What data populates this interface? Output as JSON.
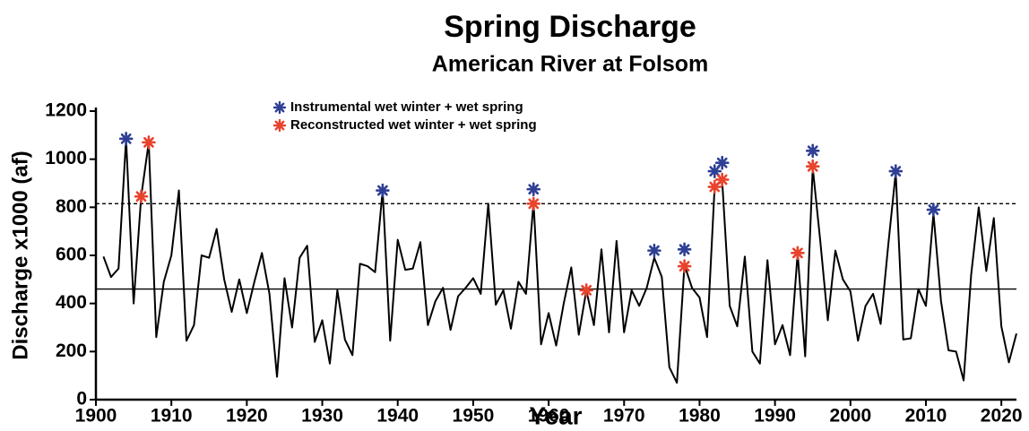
{
  "chart_data": {
    "type": "line",
    "title": "Spring Discharge",
    "subtitle": "American River at Folsom",
    "x_label": "Year",
    "y_label": "Discharge x1000 (af)",
    "xlim": [
      1900,
      2022
    ],
    "ylim": [
      0,
      1200
    ],
    "xticks": [
      1900,
      1910,
      1920,
      1930,
      1940,
      1950,
      1960,
      1970,
      1980,
      1990,
      2000,
      2010,
      2020
    ],
    "yticks": [
      0,
      200,
      400,
      600,
      800,
      1000,
      1200
    ],
    "reference_lines": [
      {
        "value": 460,
        "style": "solid"
      },
      {
        "value": 815,
        "style": "dashed"
      }
    ],
    "series": [
      {
        "color": "#000000",
        "x": [
          1901,
          1902,
          1903,
          1904,
          1905,
          1906,
          1907,
          1908,
          1909,
          1910,
          1911,
          1912,
          1913,
          1914,
          1915,
          1916,
          1917,
          1918,
          1919,
          1920,
          1921,
          1922,
          1923,
          1924,
          1925,
          1926,
          1927,
          1928,
          1929,
          1930,
          1931,
          1932,
          1933,
          1934,
          1935,
          1936,
          1937,
          1938,
          1939,
          1940,
          1941,
          1942,
          1943,
          1944,
          1945,
          1946,
          1947,
          1948,
          1949,
          1950,
          1951,
          1952,
          1953,
          1954,
          1955,
          1956,
          1957,
          1958,
          1959,
          1960,
          1961,
          1962,
          1963,
          1964,
          1965,
          1966,
          1967,
          1968,
          1969,
          1970,
          1971,
          1972,
          1973,
          1974,
          1975,
          1976,
          1977,
          1978,
          1979,
          1980,
          1981,
          1982,
          1983,
          1984,
          1985,
          1986,
          1987,
          1988,
          1989,
          1990,
          1991,
          1992,
          1993,
          1994,
          1995,
          1996,
          1997,
          1998,
          1999,
          2000,
          2001,
          2002,
          2003,
          2004,
          2005,
          2006,
          2007,
          2008,
          2009,
          2010,
          2011,
          2012,
          2013,
          2014,
          2015,
          2016,
          2017,
          2018,
          2019,
          2020,
          2021,
          2022
        ],
        "values": [
          595,
          510,
          545,
          1085,
          400,
          845,
          1070,
          260,
          490,
          600,
          870,
          245,
          310,
          600,
          590,
          710,
          500,
          365,
          500,
          360,
          490,
          610,
          440,
          95,
          505,
          300,
          590,
          640,
          240,
          330,
          150,
          455,
          250,
          185,
          565,
          555,
          530,
          870,
          245,
          665,
          540,
          545,
          655,
          310,
          410,
          465,
          290,
          430,
          465,
          505,
          440,
          815,
          395,
          455,
          295,
          490,
          440,
          820,
          230,
          360,
          225,
          400,
          550,
          270,
          455,
          310,
          625,
          280,
          660,
          280,
          455,
          390,
          465,
          590,
          510,
          135,
          70,
          560,
          465,
          425,
          260,
          885,
          910,
          390,
          305,
          595,
          200,
          150,
          580,
          230,
          310,
          185,
          610,
          180,
          965,
          660,
          330,
          620,
          500,
          450,
          245,
          390,
          440,
          315,
          640,
          945,
          250,
          255,
          460,
          390,
          775,
          410,
          205,
          200,
          80,
          520,
          800,
          535,
          755,
          305,
          155,
          275
        ]
      }
    ],
    "markers": [
      {
        "name": "Instrumental wet winter + wet spring",
        "color": "#2e3f95",
        "x": [
          1904,
          1938,
          1958,
          1974,
          1978,
          1982,
          1983,
          1995,
          2006,
          2011
        ],
        "values": [
          1085,
          870,
          875,
          620,
          625,
          950,
          985,
          1035,
          950,
          790
        ]
      },
      {
        "name": "Reconstructed wet winter + wet spring",
        "color": "#e8432c",
        "x": [
          1906,
          1907,
          1958,
          1965,
          1978,
          1982,
          1983,
          1993,
          1995
        ],
        "values": [
          845,
          1070,
          815,
          455,
          555,
          885,
          915,
          610,
          970
        ]
      }
    ]
  }
}
